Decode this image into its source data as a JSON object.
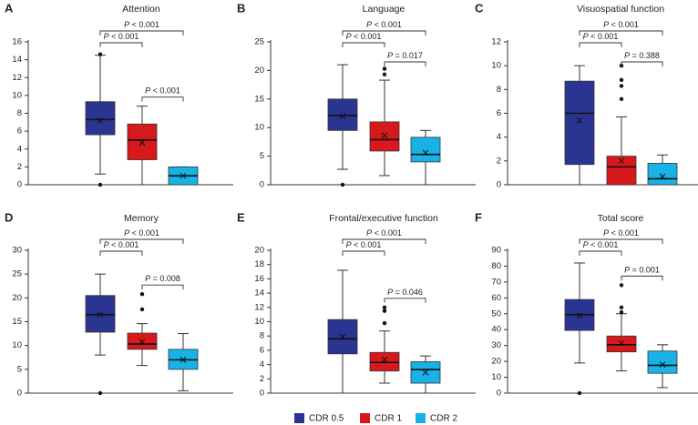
{
  "legend": {
    "items": [
      {
        "label": "CDR 0.5",
        "color": "#2a3591"
      },
      {
        "label": "CDR 1",
        "color": "#d7191c"
      },
      {
        "label": "CDR 2",
        "color": "#19b2e6"
      }
    ]
  },
  "chart_data": [
    {
      "type": "box",
      "panel": "A",
      "title": "Attention",
      "ylim": [
        0,
        16
      ],
      "yticks": [
        0,
        2,
        4,
        6,
        8,
        10,
        12,
        14,
        16
      ],
      "groups": [
        {
          "name": "CDR 0.5",
          "whisker_low": 1.2,
          "q1": 5.6,
          "median": 7.3,
          "q3": 9.3,
          "whisker_high": 14.5,
          "mean": 7.2,
          "outliers": [
            14.6,
            0
          ]
        },
        {
          "name": "CDR 1",
          "whisker_low": 0,
          "q1": 2.8,
          "median": 5.0,
          "q3": 6.8,
          "whisker_high": 8.8,
          "mean": 4.7,
          "outliers": []
        },
        {
          "name": "CDR 2",
          "whisker_low": 0,
          "q1": 0,
          "median": 1.0,
          "q3": 2.0,
          "whisker_high": 2.0,
          "mean": 1.0,
          "outliers": []
        }
      ],
      "comparisons": [
        {
          "from": 0,
          "to": 2,
          "label": "< 0.001"
        },
        {
          "from": 0,
          "to": 1,
          "label": "< 0.001"
        },
        {
          "from": 1,
          "to": 2,
          "label": "< 0.001"
        }
      ]
    },
    {
      "type": "box",
      "panel": "B",
      "title": "Language",
      "ylim": [
        0,
        25
      ],
      "yticks": [
        0,
        5,
        10,
        15,
        20,
        25
      ],
      "groups": [
        {
          "name": "CDR 0.5",
          "whisker_low": 2.7,
          "q1": 9.5,
          "median": 12.1,
          "q3": 15.0,
          "whisker_high": 21.0,
          "mean": 12.0,
          "outliers": [
            0
          ]
        },
        {
          "name": "CDR 1",
          "whisker_low": 1.6,
          "q1": 5.9,
          "median": 7.9,
          "q3": 11.0,
          "whisker_high": 18.3,
          "mean": 8.6,
          "outliers": [
            19.3,
            20.3
          ]
        },
        {
          "name": "CDR 2",
          "whisker_low": 0,
          "q1": 4.0,
          "median": 5.3,
          "q3": 8.3,
          "whisker_high": 9.5,
          "mean": 5.6,
          "outliers": []
        }
      ],
      "comparisons": [
        {
          "from": 0,
          "to": 2,
          "label": "< 0.001"
        },
        {
          "from": 0,
          "to": 1,
          "label": "< 0.001"
        },
        {
          "from": 1,
          "to": 2,
          "label": "= 0.017"
        }
      ]
    },
    {
      "type": "box",
      "panel": "C",
      "title": "Visuospatial function",
      "ylim": [
        0,
        12
      ],
      "yticks": [
        0,
        2,
        4,
        6,
        8,
        10,
        12
      ],
      "groups": [
        {
          "name": "CDR 0.5",
          "whisker_low": 0,
          "q1": 1.7,
          "median": 6.0,
          "q3": 8.7,
          "whisker_high": 10.0,
          "mean": 5.4,
          "outliers": []
        },
        {
          "name": "CDR 1",
          "whisker_low": 0,
          "q1": 0,
          "median": 1.5,
          "q3": 2.4,
          "whisker_high": 5.7,
          "mean": 2.0,
          "outliers": [
            7.2,
            8.3,
            8.8,
            10.0
          ]
        },
        {
          "name": "CDR 2",
          "whisker_low": 0,
          "q1": 0,
          "median": 0.5,
          "q3": 1.8,
          "whisker_high": 2.5,
          "mean": 0.7,
          "outliers": []
        }
      ],
      "comparisons": [
        {
          "from": 0,
          "to": 2,
          "label": "< 0.001"
        },
        {
          "from": 0,
          "to": 1,
          "label": "< 0.001"
        },
        {
          "from": 1,
          "to": 2,
          "label": "= 0.388"
        }
      ]
    },
    {
      "type": "box",
      "panel": "D",
      "title": "Memory",
      "ylim": [
        0,
        30
      ],
      "yticks": [
        0,
        5,
        10,
        15,
        20,
        25,
        30
      ],
      "groups": [
        {
          "name": "CDR 0.5",
          "whisker_low": 8.0,
          "q1": 12.8,
          "median": 16.5,
          "q3": 20.5,
          "whisker_high": 25.0,
          "mean": 16.5,
          "outliers": [
            0
          ]
        },
        {
          "name": "CDR 1",
          "whisker_low": 5.8,
          "q1": 9.2,
          "median": 10.3,
          "q3": 12.6,
          "whisker_high": 14.6,
          "mean": 10.8,
          "outliers": [
            17.6,
            20.8
          ]
        },
        {
          "name": "CDR 2",
          "whisker_low": 0.5,
          "q1": 5.0,
          "median": 7.0,
          "q3": 9.2,
          "whisker_high": 12.5,
          "mean": 7.0,
          "outliers": []
        }
      ],
      "comparisons": [
        {
          "from": 0,
          "to": 2,
          "label": "< 0.001"
        },
        {
          "from": 0,
          "to": 1,
          "label": "< 0.001"
        },
        {
          "from": 1,
          "to": 2,
          "label": "= 0.008"
        }
      ]
    },
    {
      "type": "box",
      "panel": "E",
      "title": "Frontal/executive function",
      "ylim": [
        0,
        20
      ],
      "yticks": [
        0,
        2,
        4,
        6,
        8,
        10,
        12,
        14,
        16,
        18,
        20
      ],
      "groups": [
        {
          "name": "CDR 0.5",
          "whisker_low": 0,
          "q1": 5.5,
          "median": 7.6,
          "q3": 10.3,
          "whisker_high": 17.2,
          "mean": 7.9,
          "outliers": []
        },
        {
          "name": "CDR 1",
          "whisker_low": 1.4,
          "q1": 3.1,
          "median": 4.3,
          "q3": 5.7,
          "whisker_high": 8.7,
          "mean": 4.7,
          "outliers": [
            9.8,
            11.5,
            12.0
          ]
        },
        {
          "name": "CDR 2",
          "whisker_low": 0,
          "q1": 1.4,
          "median": 3.3,
          "q3": 4.4,
          "whisker_high": 5.2,
          "mean": 2.9,
          "outliers": []
        }
      ],
      "comparisons": [
        {
          "from": 0,
          "to": 2,
          "label": "< 0.001"
        },
        {
          "from": 0,
          "to": 1,
          "label": "< 0.001"
        },
        {
          "from": 1,
          "to": 2,
          "label": "= 0.046"
        }
      ]
    },
    {
      "type": "box",
      "panel": "F",
      "title": "Total score",
      "ylim": [
        0,
        90
      ],
      "yticks": [
        0,
        10,
        20,
        30,
        40,
        50,
        60,
        70,
        80,
        90
      ],
      "groups": [
        {
          "name": "CDR 0.5",
          "whisker_low": 19.0,
          "q1": 39.5,
          "median": 49.5,
          "q3": 59.0,
          "whisker_high": 82.0,
          "mean": 48.8,
          "outliers": [
            0
          ]
        },
        {
          "name": "CDR 1",
          "whisker_low": 14.0,
          "q1": 26.0,
          "median": 30.5,
          "q3": 36.0,
          "whisker_high": 50.0,
          "mean": 31.5,
          "outliers": [
            51.0,
            54.0,
            68.0
          ]
        },
        {
          "name": "CDR 2",
          "whisker_low": 3.5,
          "q1": 12.5,
          "median": 17.5,
          "q3": 26.5,
          "whisker_high": 30.5,
          "mean": 18.0,
          "outliers": []
        }
      ],
      "comparisons": [
        {
          "from": 0,
          "to": 2,
          "label": "< 0.001"
        },
        {
          "from": 0,
          "to": 1,
          "label": "< 0.001"
        },
        {
          "from": 1,
          "to": 2,
          "label": "= 0.001"
        }
      ]
    }
  ]
}
